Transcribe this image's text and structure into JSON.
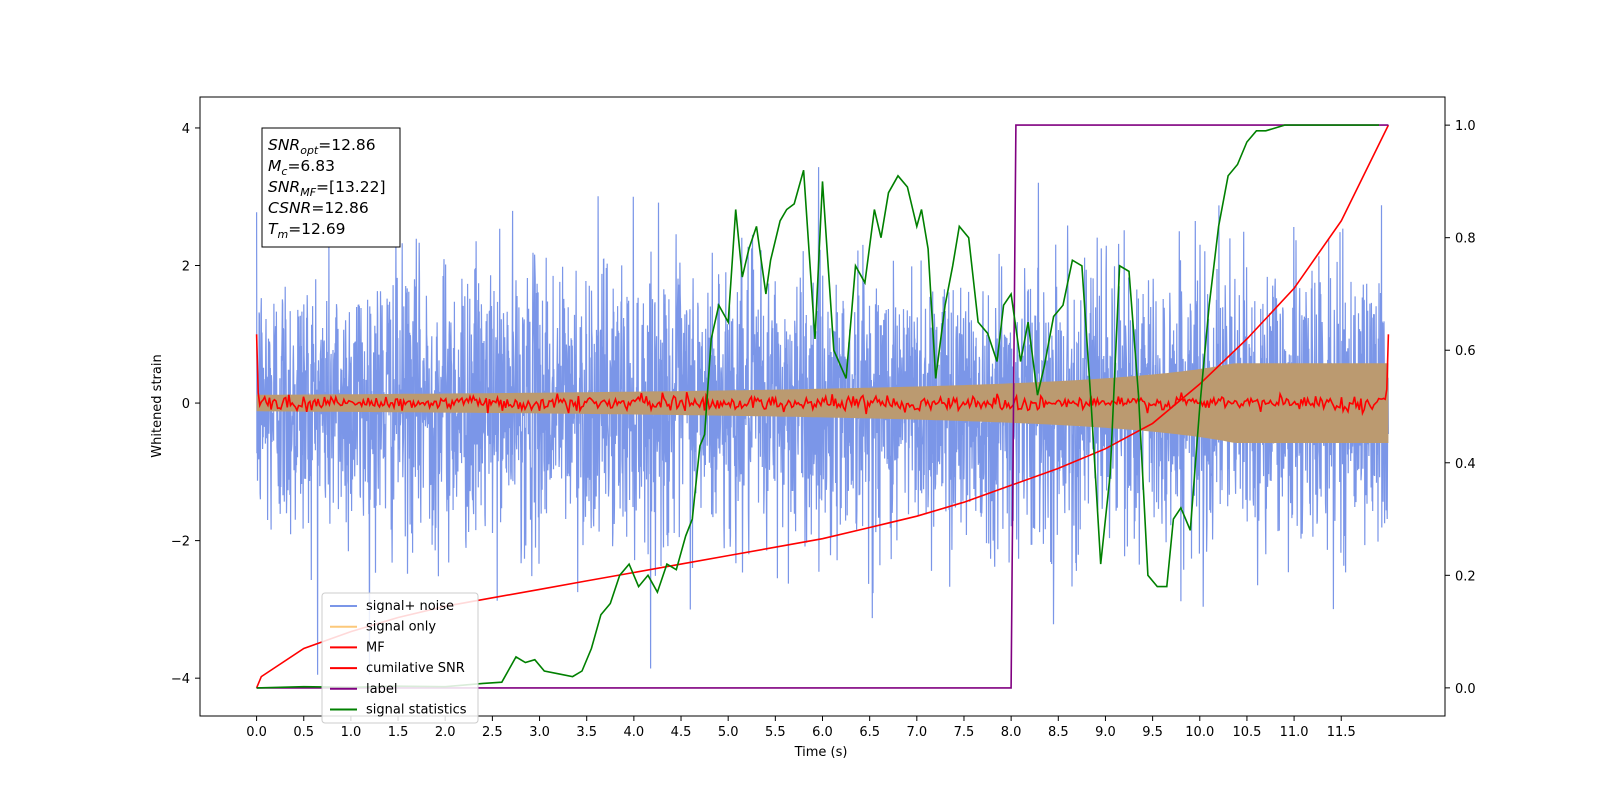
{
  "chart_data": {
    "type": "line",
    "xlabel": "Time (s)",
    "ylabel": "Whitened strain",
    "xlim": [
      -0.6,
      12.6
    ],
    "ylim": [
      -4.55,
      4.45
    ],
    "ylim_right": [
      -0.05,
      1.05
    ],
    "x_ticks": [
      0.0,
      0.5,
      1.0,
      1.5,
      2.0,
      2.5,
      3.0,
      3.5,
      4.0,
      4.5,
      5.0,
      5.5,
      6.0,
      6.5,
      7.0,
      7.5,
      8.0,
      8.5,
      9.0,
      9.5,
      10.0,
      10.5,
      11.0,
      11.5
    ],
    "x_tick_labels": [
      "0.0",
      "0.5",
      "1.0",
      "1.5",
      "2.0",
      "2.5",
      "3.0",
      "3.5",
      "4.0",
      "4.5",
      "5.0",
      "5.5",
      "6.0",
      "6.5",
      "7.0",
      "7.5",
      "8.0",
      "8.5",
      "9.0",
      "9.5",
      "10.0",
      "10.5",
      "11.0",
      "11.5"
    ],
    "y_ticks": [
      -4,
      -2,
      0,
      2,
      4
    ],
    "y_tick_labels": [
      "−4",
      "−2",
      "0",
      "2",
      "4"
    ],
    "y_right_ticks": [
      0.0,
      0.2,
      0.4,
      0.6,
      0.8,
      1.0
    ],
    "y_right_tick_labels": [
      "0.0",
      "0.2",
      "0.4",
      "0.6",
      "0.8",
      "1.0"
    ],
    "grid": false,
    "legend_position": "lower-left",
    "annotation": {
      "lines": [
        {
          "label": "SNR",
          "sub": "opt",
          "value": "=12.86"
        },
        {
          "label": "M",
          "sub": "c",
          "value": "=6.83"
        },
        {
          "label": "SNR",
          "sub": "MF",
          "value": "=[13.22]"
        },
        {
          "label": "CSNR",
          "sub": "",
          "value": "=12.86"
        },
        {
          "label": "T",
          "sub": "m",
          "value": "=12.69"
        }
      ]
    },
    "series": [
      {
        "name": "signal+ noise",
        "color": "#7b96e8",
        "axis": "left",
        "kind": "noise band",
        "t_range": [
          0.0,
          12.0
        ],
        "sigma": 1.0
      },
      {
        "name": "signal only",
        "color": "#fcc87a",
        "axis": "left",
        "kind": "chirp envelope",
        "envelope_start": 0.12,
        "envelope_end": 0.58
      },
      {
        "name": "MF",
        "color": "#ff0000",
        "axis": "left",
        "kind": "matched filter output",
        "start_value": 1.0,
        "end_value": 1.0,
        "baseline": 0.0
      },
      {
        "name": "cumilative SNR",
        "color": "#ff0000",
        "axis": "right",
        "x": [
          0.0,
          0.05,
          0.5,
          1.0,
          1.5,
          2.0,
          2.5,
          3.0,
          3.5,
          4.0,
          4.5,
          5.0,
          5.5,
          6.0,
          6.5,
          7.0,
          7.5,
          8.0,
          8.5,
          9.0,
          9.5,
          10.0,
          10.5,
          11.0,
          11.5,
          12.0
        ],
        "values": [
          0.0,
          0.02,
          0.07,
          0.1,
          0.125,
          0.145,
          0.16,
          0.175,
          0.19,
          0.205,
          0.22,
          0.235,
          0.25,
          0.265,
          0.285,
          0.305,
          0.33,
          0.36,
          0.39,
          0.425,
          0.47,
          0.54,
          0.62,
          0.71,
          0.83,
          1.0
        ]
      },
      {
        "name": "label",
        "color": "#800080",
        "axis": "right",
        "x": [
          0.0,
          8.0,
          8.05,
          12.0
        ],
        "values": [
          0.0,
          0.0,
          1.0,
          1.0
        ]
      },
      {
        "name": "signal statistics",
        "color": "#008000",
        "axis": "right",
        "x": [
          0.0,
          0.5,
          1.0,
          1.5,
          2.0,
          2.4,
          2.6,
          2.75,
          2.85,
          2.95,
          3.05,
          3.2,
          3.35,
          3.45,
          3.55,
          3.65,
          3.75,
          3.85,
          3.95,
          4.05,
          4.15,
          4.25,
          4.35,
          4.45,
          4.55,
          4.62,
          4.7,
          4.75,
          4.82,
          4.9,
          5.0,
          5.08,
          5.15,
          5.22,
          5.3,
          5.4,
          5.45,
          5.55,
          5.62,
          5.7,
          5.8,
          5.92,
          6.0,
          6.12,
          6.25,
          6.35,
          6.45,
          6.55,
          6.62,
          6.7,
          6.8,
          6.9,
          7.0,
          7.05,
          7.12,
          7.2,
          7.3,
          7.38,
          7.45,
          7.55,
          7.65,
          7.75,
          7.85,
          7.92,
          8.0,
          8.1,
          8.18,
          8.28,
          8.35,
          8.45,
          8.55,
          8.65,
          8.75,
          8.85,
          8.95,
          9.05,
          9.15,
          9.25,
          9.35,
          9.45,
          9.55,
          9.65,
          9.72,
          9.8,
          9.9,
          10.0,
          10.1,
          10.2,
          10.3,
          10.4,
          10.5,
          10.6,
          10.7,
          10.8,
          10.9,
          11.0,
          11.2,
          11.5,
          11.9
        ],
        "values": [
          0.0,
          0.002,
          0.001,
          0.003,
          0.002,
          0.008,
          0.01,
          0.055,
          0.045,
          0.05,
          0.03,
          0.025,
          0.02,
          0.03,
          0.07,
          0.13,
          0.15,
          0.2,
          0.22,
          0.18,
          0.2,
          0.17,
          0.22,
          0.21,
          0.27,
          0.3,
          0.43,
          0.45,
          0.62,
          0.68,
          0.65,
          0.85,
          0.73,
          0.78,
          0.82,
          0.7,
          0.76,
          0.83,
          0.85,
          0.86,
          0.92,
          0.62,
          0.9,
          0.6,
          0.55,
          0.75,
          0.72,
          0.85,
          0.8,
          0.88,
          0.91,
          0.89,
          0.82,
          0.85,
          0.78,
          0.55,
          0.68,
          0.75,
          0.82,
          0.8,
          0.65,
          0.63,
          0.58,
          0.68,
          0.7,
          0.58,
          0.65,
          0.52,
          0.57,
          0.66,
          0.68,
          0.76,
          0.75,
          0.5,
          0.22,
          0.38,
          0.75,
          0.74,
          0.52,
          0.2,
          0.18,
          0.18,
          0.3,
          0.32,
          0.28,
          0.5,
          0.68,
          0.82,
          0.91,
          0.93,
          0.97,
          0.99,
          0.99,
          0.995,
          1.0,
          1.0,
          1.0,
          1.0,
          1.0
        ]
      }
    ]
  }
}
